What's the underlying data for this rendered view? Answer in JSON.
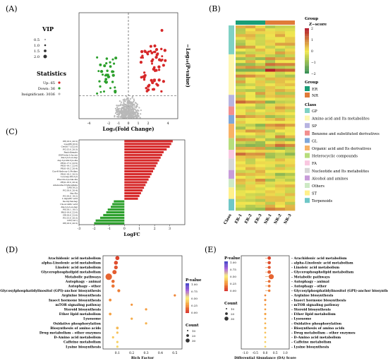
{
  "panel_labels": {
    "a": "(A)",
    "b": "(B)",
    "c": "(C)",
    "d": "(D)",
    "e": "(E)"
  },
  "colors": {
    "up": "#d62728",
    "down": "#2ca02c",
    "insig": "#b8b8b8",
    "er": "#1a9e77",
    "nr": "#e07b39",
    "bar_up": "#d62728",
    "bar_down": "#2ca02c"
  },
  "chart_data": [
    {
      "id": "volcano",
      "type": "scatter",
      "xlabel": "Log₂(Fold Change)",
      "ylabel": "−Log₁₀(P-value)",
      "xticks": [
        "-4",
        "-2",
        "-1",
        "0",
        "1",
        "2",
        "4"
      ],
      "legend": {
        "vip_title": "VIP",
        "vip_levels": [
          "0.5",
          "1.0",
          "1.5",
          "2.0"
        ],
        "stats_title": "Statistics",
        "entries": [
          {
            "label": "Up: 65",
            "color": "#d62728"
          },
          {
            "label": "Down: 36",
            "color": "#2ca02c"
          },
          {
            "label": "Insignificant: 3036",
            "color": "#b8b8b8"
          }
        ]
      },
      "groups": {
        "up": 65,
        "down": 36,
        "insignificant": 3036
      }
    },
    {
      "id": "heatmap",
      "type": "heatmap",
      "columns": [
        "ER-1",
        "ER-2",
        "ER-3",
        "NR-1",
        "NR-2",
        "NR-3"
      ],
      "class_label": "Class",
      "groups": [
        {
          "name": "ER",
          "color": "#1a9e77"
        },
        {
          "name": "NR",
          "color": "#e07b39"
        }
      ],
      "zscore_title": "Group\nZ−score",
      "zscore_ticks": [
        "2",
        "1",
        "0",
        "−1",
        "−2"
      ],
      "group_title": "Group",
      "class_title": "Class",
      "classes": [
        {
          "name": "GP",
          "color": "#7fd1c4",
          "n": 10
        },
        {
          "name": "Amino acid and Its metabolites",
          "color": "#fdf6b0",
          "n": 14
        },
        {
          "name": "SP",
          "color": "#b7b3e0",
          "n": 4
        },
        {
          "name": "Benzene and substituted derivatives",
          "color": "#f28e8e",
          "n": 3
        },
        {
          "name": "GL",
          "color": "#7fa7d9",
          "n": 3
        },
        {
          "name": "Organic acid and Its derivatives",
          "color": "#f7b266",
          "n": 5
        },
        {
          "name": "Heterocyclic compounds",
          "color": "#b7dd7c",
          "n": 4
        },
        {
          "name": "FA",
          "color": "#f9c7e0",
          "n": 3
        },
        {
          "name": "Nucleotide and Its metabolites",
          "color": "#d6d6d6",
          "n": 4
        },
        {
          "name": "Alcohol and amines",
          "color": "#c79bd9",
          "n": 3
        },
        {
          "name": "Others",
          "color": "#cde9c5",
          "n": 3
        },
        {
          "name": "ST",
          "color": "#fff08a",
          "n": 4
        },
        {
          "name": "Terpenoids",
          "color": "#6fc7c7",
          "n": 4
        }
      ]
    },
    {
      "id": "logfc_bars",
      "type": "bar",
      "orientation": "horizontal",
      "xlabel": "LogFC",
      "xlim": [
        -3,
        4
      ],
      "xticks": [
        -3,
        -2,
        -1,
        0,
        1,
        2,
        3
      ],
      "categories": [
        "PE(16:0_20:3)",
        "LPC(14:1)",
        "PC(15:0_20:3)",
        "GP(18:0_22:6)",
        "PE(0-16:0_22:6)",
        "PG(18:1_18:1)",
        "Ala-Lys-Leu-Asp",
        "Cis-Aconitic acid",
        "Ile-Gly-Val-Asp",
        "L-Aspartic acid",
        "PC(16:0_18:2)",
        "Arg-Ala",
        "PC(18:0_20:4)",
        "LPE(18:2)",
        "Adenosine triphosphate",
        "PE(O-16:0_20:4)",
        "Phe-Glu-Lys-Ala-Ala",
        "Leu-Asp-Glu-Lys",
        "PE(O-18:2_20:5)",
        "Cys-4-Hydroxy-L-Proline",
        "PE(O-18:2_20:4)",
        "PE(O-16:1_22:6)",
        "PE(O-17:2_22:6)",
        "Asp-Lys-Val-Cys-Ala",
        "Ala-Lys-Leu-Asp",
        "GDP-beta-L-fucose",
        "Pantothenate",
        "PC(15:0_20:3)",
        "Cer(d17:1/22:0)",
        "LysoPE(16:0)",
        "PE(16:0_20:3)"
      ],
      "values": [
        -2.0,
        -1.9,
        -1.6,
        -1.4,
        -1.2,
        -1.1,
        -0.9,
        -0.8,
        -0.7,
        0.9,
        1.0,
        1.1,
        1.2,
        1.3,
        1.4,
        1.5,
        1.6,
        1.7,
        1.8,
        1.9,
        2.0,
        2.1,
        2.2,
        2.3,
        2.4,
        2.5,
        2.6,
        2.8,
        3.0,
        3.1,
        3.2
      ]
    },
    {
      "id": "kegg_enrich",
      "type": "scatter",
      "xlabel": "Rich Factor",
      "xlim": [
        0,
        0.55
      ],
      "xticks": [
        "0.1",
        "0.2",
        "0.3",
        "0.4",
        "0.5"
      ],
      "pathways": [
        "Arachidonic acid metabolism",
        "alpha-Linolenic acid metabolism",
        "Linoleic acid metabolism",
        "Glycerophospholipid metabolism",
        "Metabolic pathways",
        "Autophagy - animal",
        "Autophagy - other",
        "Glycosylphosphatidylinositol (GPI)-anchor biosynthesis",
        "Arginine biosynthesis",
        "Insect hormone biosynthesis",
        "mTOR signaling pathway",
        "Steroid biosynthesis",
        "Ether lipid metabolism",
        "Lysosome",
        "Oxidative phosphorylation",
        "Biosynthesis of amino acids",
        "Drug metabolism - other enzymes",
        "D-Amino acid metabolism",
        "Caffeine metabolism",
        "Lysine biosynthesis"
      ],
      "rich_factor": [
        0.1,
        0.09,
        0.09,
        0.08,
        0.04,
        0.07,
        0.07,
        0.11,
        0.5,
        0.05,
        0.2,
        0.3,
        0.05,
        0.2,
        0.3,
        0.1,
        0.1,
        0.07,
        0.1,
        0.1
      ],
      "count": [
        8,
        7,
        6,
        9,
        40,
        4,
        4,
        3,
        1,
        2,
        1,
        1,
        2,
        1,
        1,
        2,
        1,
        1,
        1,
        1
      ],
      "pvalue_title": "P-value",
      "pvalue_ticks": [
        "1.00",
        "0.75",
        "0.50",
        "0.25",
        "0.00"
      ],
      "count_title": "Count",
      "count_ticks": [
        "10",
        "20",
        "30"
      ]
    },
    {
      "id": "da_score",
      "type": "scatter",
      "xlabel": "Differential Abundance (DA) Score",
      "xlim": [
        -1.2,
        1.2
      ],
      "xticks": [
        "-1.0",
        "-0.5",
        "0.0",
        "0.5",
        "1.0"
      ],
      "pathways": [
        "Arachidonic acid metabolism",
        "alpha-Linolenic acid metabolism",
        "Linoleic acid metabolism",
        "Glycerophospholipid metabolism",
        "Metabolic pathways",
        "Autophagy - animal",
        "Autophagy - other",
        "Glycosylphosphatidylinositol (GPI)-anchor biosynthesis",
        "Arginine biosynthesis",
        "Insect hormone biosynthesis",
        "mTOR signaling pathway",
        "Steroid biosynthesis",
        "Ether lipid metabolism",
        "Lysosome",
        "Oxidative phosphorylation",
        "Biosynthesis of amino acids",
        "Drug metabolism - other enzymes",
        "D-Amino acid metabolism",
        "Caffeine metabolism",
        "Lysine biosynthesis"
      ],
      "scores": [
        0.2,
        0.2,
        0.2,
        0.2,
        0.3,
        0.2,
        0.2,
        0.2,
        0.0,
        0.0,
        0.0,
        0.0,
        0.0,
        0.0,
        0.0,
        0.0,
        0.0,
        0.0,
        0.0,
        0.0
      ],
      "count": [
        8,
        7,
        6,
        9,
        40,
        4,
        4,
        3,
        1,
        2,
        1,
        1,
        2,
        1,
        1,
        2,
        1,
        1,
        1,
        1
      ],
      "pvalue_title": "P-value",
      "pvalue_ticks": [
        "1.00",
        "0.75",
        "0.50",
        "0.25",
        "0.00"
      ],
      "count_title": "Count",
      "count_ticks": [
        "10",
        "20",
        "30"
      ]
    }
  ]
}
